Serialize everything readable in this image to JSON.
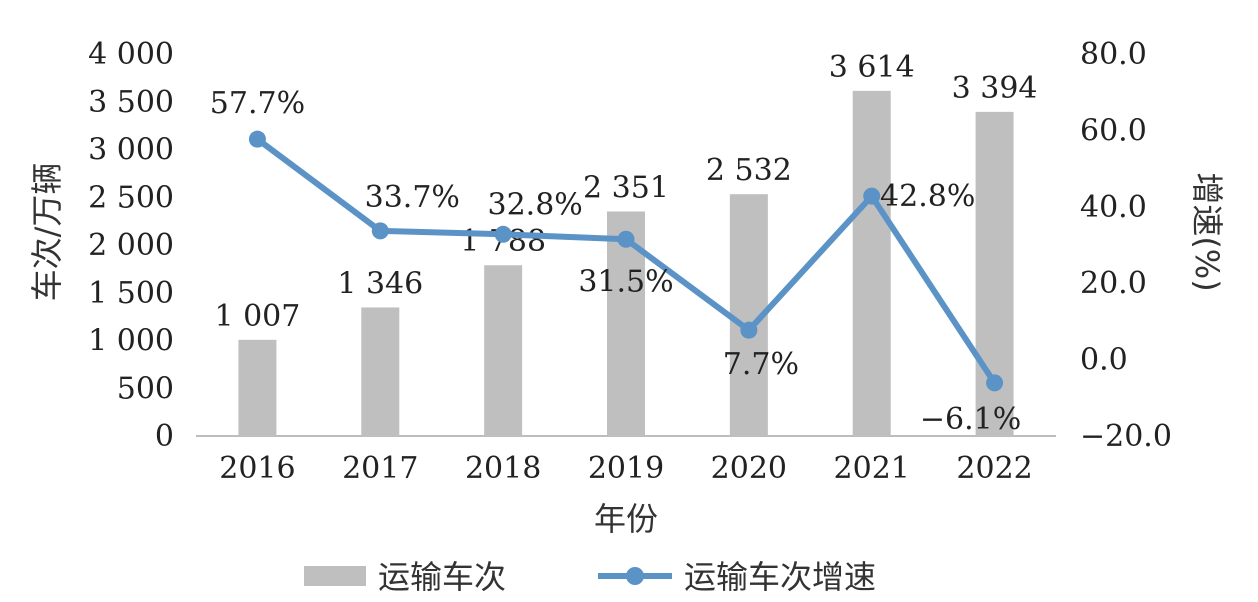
{
  "chart_data": {
    "type": "bar",
    "categories": [
      "2016",
      "2017",
      "2018",
      "2019",
      "2020",
      "2021",
      "2022"
    ],
    "series": [
      {
        "name": "运输车次",
        "type": "bar",
        "axis": "left",
        "color": "#c0bfbf",
        "values": [
          1007,
          1346,
          1788,
          2351,
          2532,
          3614,
          3394
        ],
        "labels": [
          "1 007",
          "1 346",
          "1 788",
          "2 351",
          "2 532",
          "3 614",
          "3 394"
        ]
      },
      {
        "name": "运输车次增速",
        "type": "line",
        "axis": "right",
        "color": "#5b93c7",
        "values": [
          57.7,
          33.7,
          32.8,
          31.5,
          7.7,
          42.8,
          -6.1
        ],
        "labels": [
          "57.7%",
          "33.7%",
          "32.8%",
          "31.5%",
          "7.7%",
          "42.8%",
          "−6.1%"
        ]
      }
    ],
    "xlabel": "年份",
    "ylabel": "车次/万辆",
    "y2label": "增速(%)",
    "ylim": [
      0,
      4000
    ],
    "y2lim": [
      -20,
      80
    ],
    "yticks": [
      0,
      500,
      1000,
      1500,
      2000,
      2500,
      3000,
      3500,
      4000
    ],
    "ytick_labels": [
      "0",
      "500",
      "1 000",
      "1 500",
      "2 000",
      "2 500",
      "3 000",
      "3 500",
      "4 000"
    ],
    "y2ticks": [
      -20,
      0,
      20,
      40,
      60,
      80
    ],
    "y2tick_labels": [
      "−20.0",
      "0.0",
      "20.0",
      "40.0",
      "60.0",
      "80.0"
    ],
    "grid": false,
    "legend": "bottom"
  }
}
